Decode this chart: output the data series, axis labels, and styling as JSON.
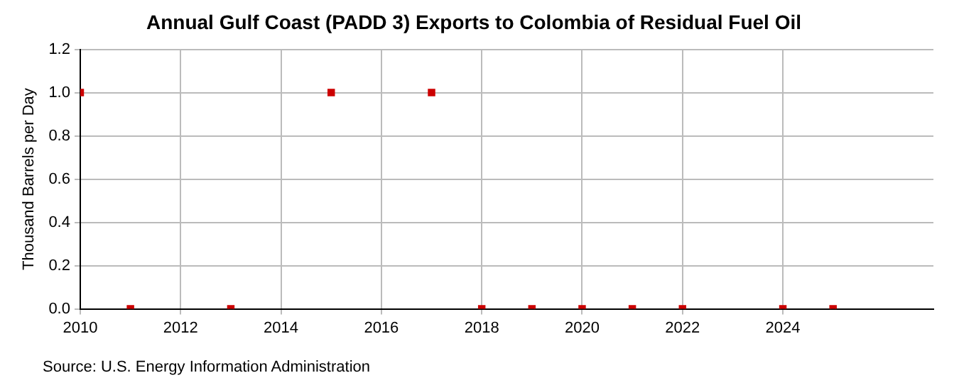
{
  "chart_data": {
    "type": "scatter",
    "title": "Annual Gulf Coast (PADD 3) Exports to Colombia of Residual Fuel Oil",
    "ylabel": "Thousand Barrels per Day",
    "x": [
      2010,
      2011,
      2013,
      2015,
      2017,
      2018,
      2019,
      2020,
      2021,
      2022,
      2024,
      2025
    ],
    "series": [
      {
        "color": "#cc0000",
        "values": [
          1,
          0,
          0,
          1,
          1,
          0,
          0,
          0,
          0,
          0,
          0,
          0
        ]
      }
    ],
    "xlim": [
      2010,
      2027
    ],
    "xticks": [
      2010,
      2012,
      2014,
      2016,
      2018,
      2020,
      2022,
      2024
    ],
    "ylim": [
      0,
      1.2
    ],
    "yticks": [
      {
        "value": 0,
        "label": "0.0"
      },
      {
        "value": 0.2,
        "label": "0.2"
      },
      {
        "value": 0.4,
        "label": "0.4"
      },
      {
        "value": 0.6,
        "label": "0.6"
      },
      {
        "value": 0.8,
        "label": "0.8"
      },
      {
        "value": 1,
        "label": "1.0"
      },
      {
        "value": 1.2,
        "label": "1.2"
      }
    ],
    "grid": true,
    "legend": false,
    "marker": "square",
    "annotations": [
      "Source: U.S. Energy Information Administration"
    ]
  }
}
